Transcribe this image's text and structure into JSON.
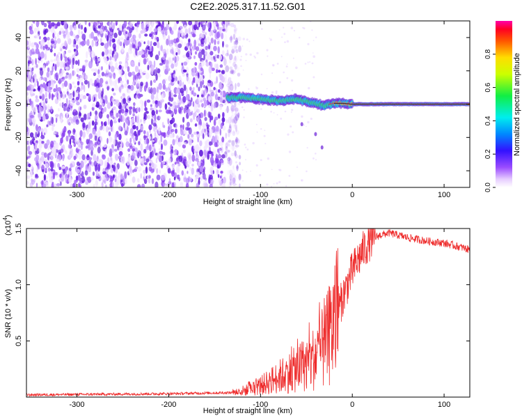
{
  "title": "C2E2.2025.317.11.52.G01",
  "colors": {
    "snr_line": "#ee2b2b",
    "spec_base": "#7b1fe0",
    "trace_core": "#ff2a2a",
    "trace_edge": "#22ccee",
    "trace_mid": "#33ee66"
  },
  "chart_data": [
    {
      "type": "heatmap",
      "name": "spectrogram",
      "xlabel": "Height of straight line (km)",
      "ylabel": "Frequency (Hz)",
      "xlim": [
        -355,
        128
      ],
      "ylim": [
        -50,
        50
      ],
      "xticks": [
        -300,
        -200,
        -100,
        0,
        100
      ],
      "yticks": [
        -40,
        -20,
        0,
        20,
        40
      ],
      "noise_region_x": [
        -355,
        -130
      ],
      "trace": [
        {
          "x": -135,
          "y": 4
        },
        {
          "x": -120,
          "y": 4
        },
        {
          "x": -100,
          "y": 3
        },
        {
          "x": -80,
          "y": 2
        },
        {
          "x": -60,
          "y": 3
        },
        {
          "x": -45,
          "y": 1
        },
        {
          "x": -30,
          "y": -1
        },
        {
          "x": -20,
          "y": 0.5
        },
        {
          "x": -10,
          "y": 0.5
        },
        {
          "x": 0,
          "y": 0
        },
        {
          "x": 128,
          "y": 0
        }
      ],
      "colorbar": {
        "label": "Normalized spectral amplitude",
        "range": [
          0,
          1
        ],
        "ticks": [
          {
            "value": 0.0,
            "label": "0.0"
          },
          {
            "value": 0.2,
            "label": "0.2"
          },
          {
            "value": 0.4,
            "label": "0.4"
          },
          {
            "value": 0.6,
            "label": "0.6"
          },
          {
            "value": 0.8,
            "label": "0.8"
          }
        ]
      }
    },
    {
      "type": "line",
      "name": "snr",
      "xlabel": "Height of straight line (km)",
      "ylabel": "SNR (10 * v/v)",
      "multiplier_label": "(x10",
      "multiplier_exp": "4",
      "multiplier_close": ")",
      "xlim": [
        -355,
        128
      ],
      "ylim": [
        0,
        1.5
      ],
      "xticks": [
        -300,
        -200,
        -100,
        0,
        100
      ],
      "yticks": [
        {
          "value": 0.5,
          "label": "0.5"
        },
        {
          "value": 1.0,
          "label": "1.0"
        },
        {
          "value": 1.5,
          "label": "1.5"
        }
      ],
      "envelope": [
        {
          "x": -355,
          "y": 0.02
        },
        {
          "x": -200,
          "y": 0.03
        },
        {
          "x": -130,
          "y": 0.04
        },
        {
          "x": -110,
          "y": 0.07
        },
        {
          "x": -95,
          "y": 0.12
        },
        {
          "x": -80,
          "y": 0.18
        },
        {
          "x": -60,
          "y": 0.25
        },
        {
          "x": -45,
          "y": 0.32
        },
        {
          "x": -30,
          "y": 0.45
        },
        {
          "x": -20,
          "y": 0.65
        },
        {
          "x": -10,
          "y": 0.9
        },
        {
          "x": 0,
          "y": 1.12
        },
        {
          "x": 10,
          "y": 1.28
        },
        {
          "x": 20,
          "y": 1.4
        },
        {
          "x": 30,
          "y": 1.44
        },
        {
          "x": 40,
          "y": 1.46
        },
        {
          "x": 60,
          "y": 1.42
        },
        {
          "x": 80,
          "y": 1.39
        },
        {
          "x": 100,
          "y": 1.37
        },
        {
          "x": 120,
          "y": 1.33
        },
        {
          "x": 128,
          "y": 1.31
        }
      ]
    }
  ]
}
